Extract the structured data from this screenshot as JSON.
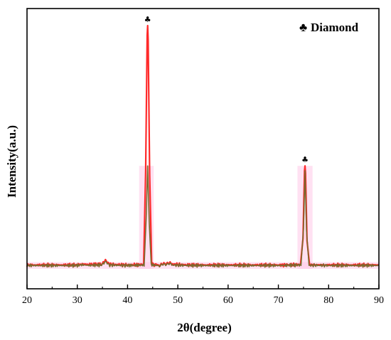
{
  "chart_data": {
    "type": "line",
    "title": "",
    "xlabel": "2θ(degree)",
    "ylabel": "Intensity(a.u.)",
    "xlim": [
      20,
      90
    ],
    "xticks": [
      20,
      30,
      40,
      50,
      60,
      70,
      80,
      90
    ],
    "show_y_ticks": false,
    "grid": false,
    "legend": {
      "position": "top-right",
      "symbol": "♣",
      "label": "Diamond"
    },
    "colors": {
      "raw": "#ff2a2a",
      "fit": "#7a6a2e",
      "highlight": "#ffc8e8",
      "axis": "#000000"
    },
    "series": [
      {
        "style": "raw",
        "x": [
          20,
          30,
          31,
          32,
          35,
          35.6,
          36.3,
          40,
          43.2,
          43.6,
          43.9,
          44.0,
          44.1,
          44.4,
          44.8,
          46,
          47.4,
          48.1,
          48.8,
          52,
          60,
          70,
          74.4,
          74.9,
          75.2,
          75.3,
          75.4,
          75.7,
          76.2,
          80,
          90
        ],
        "y": [
          1.0,
          1.0,
          1.4,
          1.2,
          1.3,
          2.8,
          1.3,
          1.0,
          1.2,
          40,
          96,
          100,
          94,
          38,
          1.4,
          1.0,
          1.4,
          2.2,
          1.3,
          1.0,
          1.0,
          1.0,
          1.2,
          12,
          40,
          42,
          39,
          11,
          1.1,
          1.0,
          1.0
        ]
      },
      {
        "style": "fit",
        "x": [
          20,
          30,
          31,
          32,
          35,
          35.6,
          36.3,
          40,
          43.3,
          43.7,
          44.0,
          44.3,
          44.7,
          46,
          47.4,
          48.1,
          48.8,
          52,
          60,
          70,
          74.5,
          75.0,
          75.3,
          75.6,
          76.1,
          80,
          90
        ],
        "y": [
          0.8,
          0.8,
          1.1,
          0.9,
          1.0,
          2.2,
          1.0,
          0.8,
          1.0,
          20,
          42,
          19,
          1.1,
          0.8,
          1.1,
          1.8,
          1.0,
          0.8,
          0.8,
          0.8,
          1.0,
          16,
          40,
          15,
          0.9,
          0.8,
          0.8
        ]
      }
    ],
    "peak_markers": [
      {
        "x": 44.0,
        "y": 100,
        "symbol": "♣"
      },
      {
        "x": 75.3,
        "y": 42,
        "symbol": "♣"
      }
    ],
    "highlight_regions": [
      {
        "x": [
          20,
          90
        ],
        "y": [
          0,
          2.2
        ]
      },
      {
        "x": [
          42.3,
          45.2
        ],
        "y": [
          0,
          42
        ]
      },
      {
        "x": [
          73.8,
          76.8
        ],
        "y": [
          0,
          42
        ]
      }
    ]
  }
}
